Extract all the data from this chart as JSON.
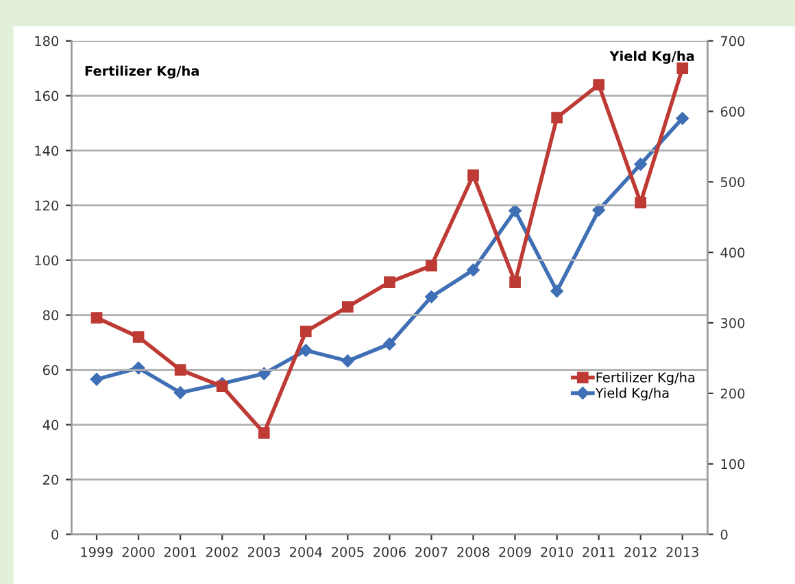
{
  "chart_data": {
    "type": "line",
    "ylabel": "Fertilizer Kg/ha",
    "y2label": "Yield Kg/ha",
    "categories": [
      "1999",
      "2000",
      "2001",
      "2002",
      "2003",
      "2004",
      "2005",
      "2006",
      "2007",
      "2008",
      "2009",
      "2010",
      "2011",
      "2012",
      "2013"
    ],
    "series": [
      {
        "name": "Fertilizer Kg/ha",
        "color": "#be3a34",
        "marker": "square",
        "values": [
          79,
          72,
          60,
          54,
          37,
          74,
          83,
          92,
          98,
          131,
          92,
          152,
          164,
          121,
          170
        ]
      },
      {
        "name": "Yield Kg/ha",
        "color": "#3f6fb5",
        "marker": "diamond",
        "axis": "y2",
        "values": [
          220,
          236,
          201,
          214,
          228,
          261,
          246,
          270,
          337,
          375,
          459,
          345,
          460,
          525,
          590
        ]
      }
    ],
    "ylim": [
      0,
      180
    ],
    "yticks": [
      0,
      20,
      40,
      60,
      80,
      100,
      120,
      140,
      160,
      180
    ],
    "y2lim": [
      0,
      700
    ],
    "y2ticks": [
      0,
      100,
      200,
      300,
      400,
      500,
      600,
      700
    ],
    "grid": "y",
    "legend": "right",
    "line_style": "solid"
  }
}
